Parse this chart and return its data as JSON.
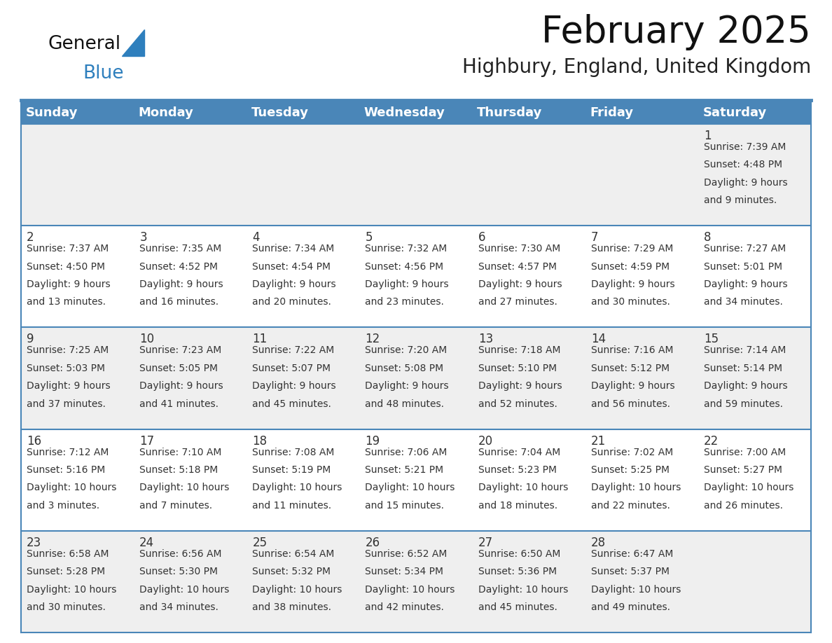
{
  "title": "February 2025",
  "subtitle": "Highbury, England, United Kingdom",
  "header_color": "#4a86b8",
  "header_text_color": "#ffffff",
  "row_odd_color": "#efefef",
  "row_even_color": "#ffffff",
  "border_color": "#4a86b8",
  "text_color": "#333333",
  "day_headers": [
    "Sunday",
    "Monday",
    "Tuesday",
    "Wednesday",
    "Thursday",
    "Friday",
    "Saturday"
  ],
  "title_fontsize": 38,
  "subtitle_fontsize": 20,
  "header_fontsize": 13,
  "day_num_fontsize": 12,
  "cell_text_fontsize": 10,
  "logo_general_color": "#111111",
  "logo_blue_color": "#2e7fbd",
  "calendar_data": [
    [
      null,
      null,
      null,
      null,
      null,
      null,
      {
        "day": 1,
        "sunrise": "7:39 AM",
        "sunset": "4:48 PM",
        "daylight": "9 hours and 9 minutes."
      }
    ],
    [
      {
        "day": 2,
        "sunrise": "7:37 AM",
        "sunset": "4:50 PM",
        "daylight": "9 hours and 13 minutes."
      },
      {
        "day": 3,
        "sunrise": "7:35 AM",
        "sunset": "4:52 PM",
        "daylight": "9 hours and 16 minutes."
      },
      {
        "day": 4,
        "sunrise": "7:34 AM",
        "sunset": "4:54 PM",
        "daylight": "9 hours and 20 minutes."
      },
      {
        "day": 5,
        "sunrise": "7:32 AM",
        "sunset": "4:56 PM",
        "daylight": "9 hours and 23 minutes."
      },
      {
        "day": 6,
        "sunrise": "7:30 AM",
        "sunset": "4:57 PM",
        "daylight": "9 hours and 27 minutes."
      },
      {
        "day": 7,
        "sunrise": "7:29 AM",
        "sunset": "4:59 PM",
        "daylight": "9 hours and 30 minutes."
      },
      {
        "day": 8,
        "sunrise": "7:27 AM",
        "sunset": "5:01 PM",
        "daylight": "9 hours and 34 minutes."
      }
    ],
    [
      {
        "day": 9,
        "sunrise": "7:25 AM",
        "sunset": "5:03 PM",
        "daylight": "9 hours and 37 minutes."
      },
      {
        "day": 10,
        "sunrise": "7:23 AM",
        "sunset": "5:05 PM",
        "daylight": "9 hours and 41 minutes."
      },
      {
        "day": 11,
        "sunrise": "7:22 AM",
        "sunset": "5:07 PM",
        "daylight": "9 hours and 45 minutes."
      },
      {
        "day": 12,
        "sunrise": "7:20 AM",
        "sunset": "5:08 PM",
        "daylight": "9 hours and 48 minutes."
      },
      {
        "day": 13,
        "sunrise": "7:18 AM",
        "sunset": "5:10 PM",
        "daylight": "9 hours and 52 minutes."
      },
      {
        "day": 14,
        "sunrise": "7:16 AM",
        "sunset": "5:12 PM",
        "daylight": "9 hours and 56 minutes."
      },
      {
        "day": 15,
        "sunrise": "7:14 AM",
        "sunset": "5:14 PM",
        "daylight": "9 hours and 59 minutes."
      }
    ],
    [
      {
        "day": 16,
        "sunrise": "7:12 AM",
        "sunset": "5:16 PM",
        "daylight": "10 hours and 3 minutes."
      },
      {
        "day": 17,
        "sunrise": "7:10 AM",
        "sunset": "5:18 PM",
        "daylight": "10 hours and 7 minutes."
      },
      {
        "day": 18,
        "sunrise": "7:08 AM",
        "sunset": "5:19 PM",
        "daylight": "10 hours and 11 minutes."
      },
      {
        "day": 19,
        "sunrise": "7:06 AM",
        "sunset": "5:21 PM",
        "daylight": "10 hours and 15 minutes."
      },
      {
        "day": 20,
        "sunrise": "7:04 AM",
        "sunset": "5:23 PM",
        "daylight": "10 hours and 18 minutes."
      },
      {
        "day": 21,
        "sunrise": "7:02 AM",
        "sunset": "5:25 PM",
        "daylight": "10 hours and 22 minutes."
      },
      {
        "day": 22,
        "sunrise": "7:00 AM",
        "sunset": "5:27 PM",
        "daylight": "10 hours and 26 minutes."
      }
    ],
    [
      {
        "day": 23,
        "sunrise": "6:58 AM",
        "sunset": "5:28 PM",
        "daylight": "10 hours and 30 minutes."
      },
      {
        "day": 24,
        "sunrise": "6:56 AM",
        "sunset": "5:30 PM",
        "daylight": "10 hours and 34 minutes."
      },
      {
        "day": 25,
        "sunrise": "6:54 AM",
        "sunset": "5:32 PM",
        "daylight": "10 hours and 38 minutes."
      },
      {
        "day": 26,
        "sunrise": "6:52 AM",
        "sunset": "5:34 PM",
        "daylight": "10 hours and 42 minutes."
      },
      {
        "day": 27,
        "sunrise": "6:50 AM",
        "sunset": "5:36 PM",
        "daylight": "10 hours and 45 minutes."
      },
      {
        "day": 28,
        "sunrise": "6:47 AM",
        "sunset": "5:37 PM",
        "daylight": "10 hours and 49 minutes."
      },
      null
    ]
  ]
}
